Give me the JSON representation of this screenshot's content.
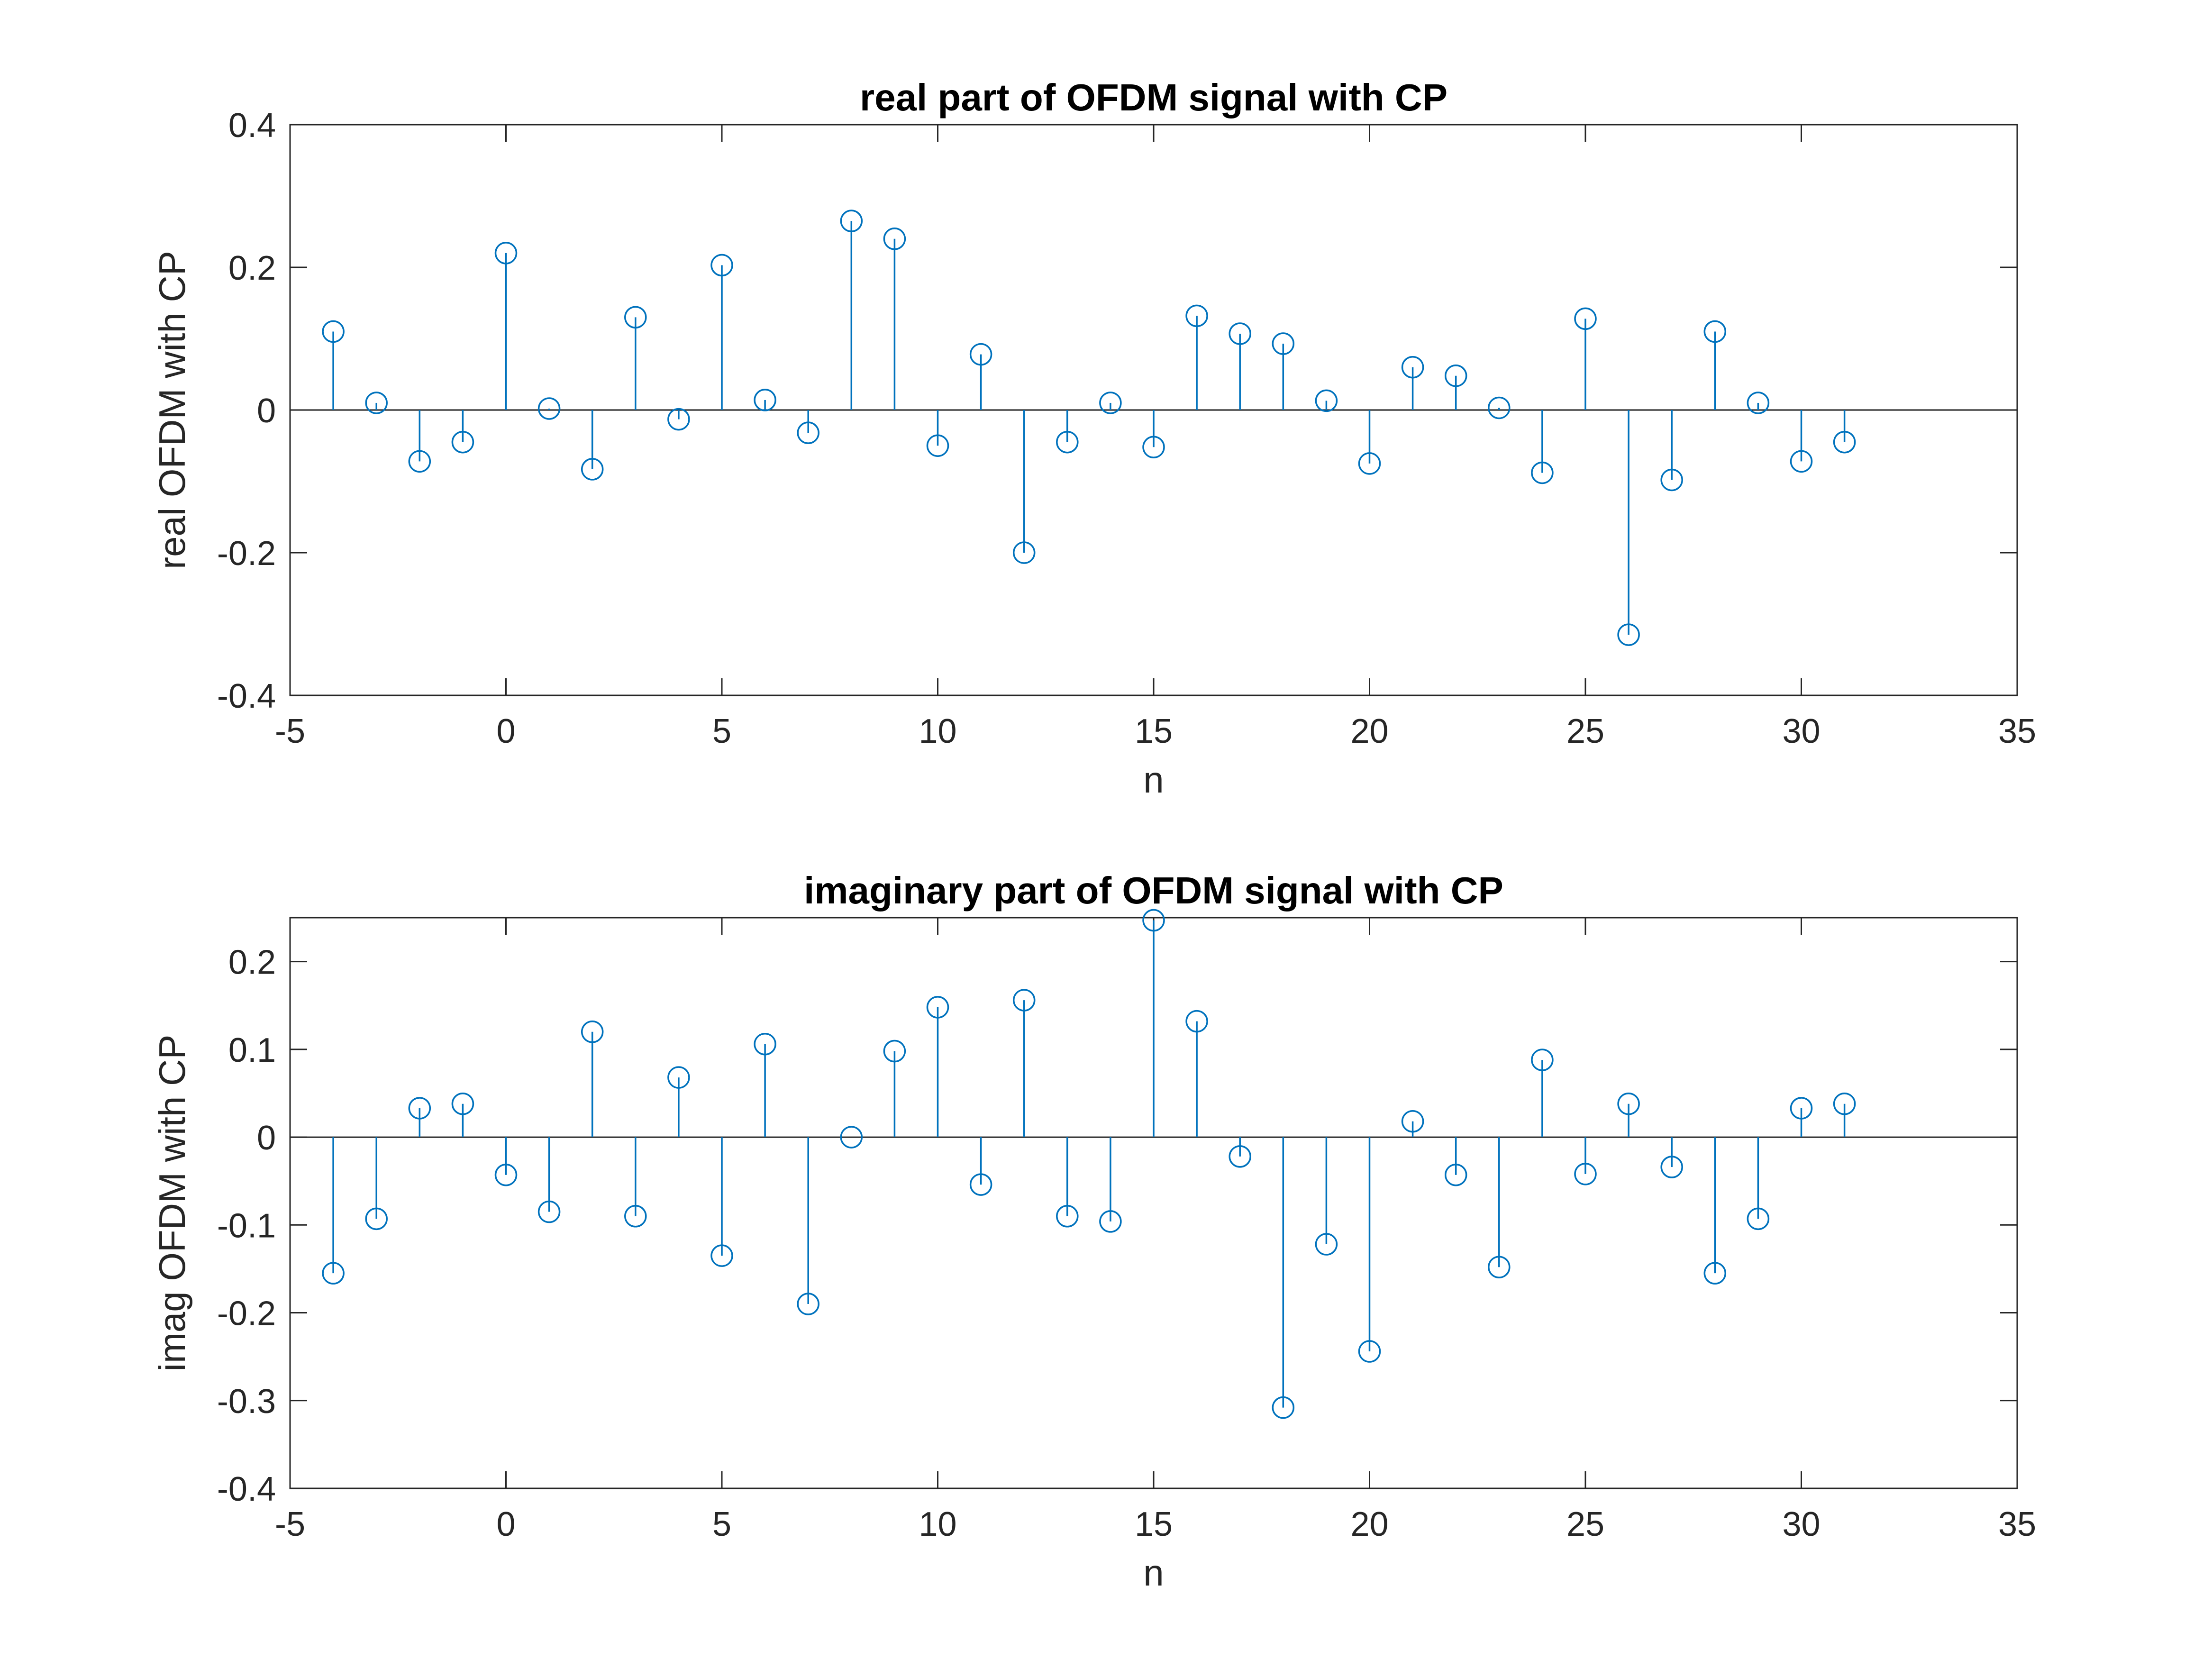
{
  "chart_data": [
    {
      "type": "stem",
      "title": "real part of OFDM signal with CP",
      "xlabel": "n",
      "ylabel": "real OFDM with CP",
      "xlim": [
        -5,
        35
      ],
      "ylim": [
        -0.4,
        0.4
      ],
      "xticks": [
        -5,
        0,
        5,
        10,
        15,
        20,
        25,
        30,
        35
      ],
      "yticks": [
        -0.4,
        -0.2,
        0,
        0.2,
        0.4
      ],
      "xtick_labels": [
        "-5",
        "0",
        "5",
        "10",
        "15",
        "20",
        "25",
        "30",
        "35"
      ],
      "ytick_labels": [
        "-0.4",
        "-0.2",
        "0",
        "0.2",
        "0.4"
      ],
      "color": "#0072BD",
      "x": [
        -4,
        -3,
        -2,
        -1,
        0,
        1,
        2,
        3,
        4,
        5,
        6,
        7,
        8,
        9,
        10,
        11,
        12,
        13,
        14,
        15,
        16,
        17,
        18,
        19,
        20,
        21,
        22,
        23,
        24,
        25,
        26,
        27,
        28,
        29,
        30,
        31
      ],
      "y": [
        0.11,
        0.01,
        -0.072,
        -0.045,
        0.22,
        0.002,
        -0.083,
        0.13,
        -0.013,
        0.203,
        0.014,
        -0.032,
        0.265,
        0.24,
        -0.05,
        0.078,
        -0.2,
        -0.045,
        0.01,
        -0.052,
        0.132,
        0.107,
        0.093,
        0.013,
        -0.075,
        0.06,
        0.048,
        0.003,
        -0.088,
        0.128,
        -0.315,
        -0.098,
        0.11,
        0.01,
        -0.072,
        -0.045
      ]
    },
    {
      "type": "stem",
      "title": "imaginary part of OFDM signal with CP",
      "xlabel": "n",
      "ylabel": "imag OFDM with CP",
      "xlim": [
        -5,
        35
      ],
      "ylim": [
        -0.4,
        0.25
      ],
      "xticks": [
        -5,
        0,
        5,
        10,
        15,
        20,
        25,
        30,
        35
      ],
      "yticks": [
        -0.4,
        -0.3,
        -0.2,
        -0.1,
        0,
        0.1,
        0.2
      ],
      "xtick_labels": [
        "-5",
        "0",
        "5",
        "10",
        "15",
        "20",
        "25",
        "30",
        "35"
      ],
      "ytick_labels": [
        "-0.4",
        "-0.3",
        "-0.2",
        "-0.1",
        "0",
        "0.1",
        "0.2"
      ],
      "color": "#0072BD",
      "x": [
        -4,
        -3,
        -2,
        -1,
        0,
        1,
        2,
        3,
        4,
        5,
        6,
        7,
        8,
        9,
        10,
        11,
        12,
        13,
        14,
        15,
        16,
        17,
        18,
        19,
        20,
        21,
        22,
        23,
        24,
        25,
        26,
        27,
        28,
        29,
        30,
        31
      ],
      "y": [
        -0.155,
        -0.093,
        0.033,
        0.038,
        -0.043,
        -0.085,
        0.12,
        -0.09,
        0.068,
        -0.135,
        0.106,
        -0.19,
        0.0,
        0.098,
        0.148,
        -0.054,
        0.156,
        -0.09,
        -0.096,
        0.247,
        0.132,
        -0.022,
        -0.308,
        -0.122,
        -0.244,
        0.018,
        -0.043,
        -0.148,
        0.088,
        -0.042,
        0.038,
        -0.034,
        -0.155,
        -0.093,
        0.033,
        0.038
      ]
    }
  ]
}
